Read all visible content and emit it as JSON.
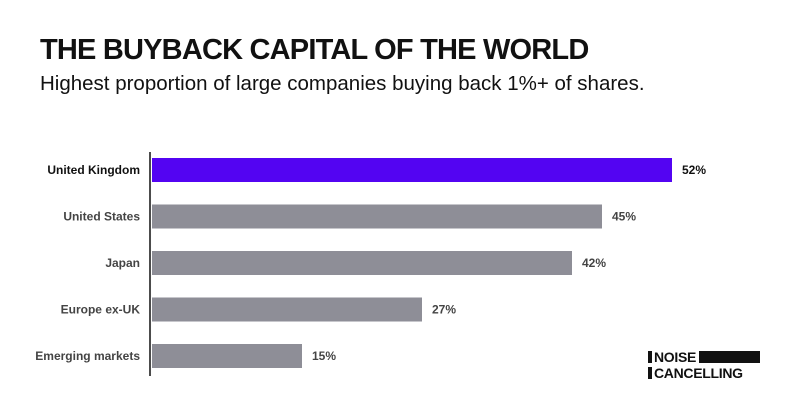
{
  "chart_data": {
    "type": "bar",
    "orientation": "horizontal",
    "title": "THE BUYBACK CAPITAL OF THE WORLD",
    "subtitle": "Highest proportion of large companies buying back 1%+ of shares.",
    "categories": [
      "United Kingdom",
      "United States",
      "Japan",
      "Europe ex-UK",
      "Emerging markets"
    ],
    "values": [
      52,
      45,
      42,
      27,
      15
    ],
    "value_labels": [
      "52%",
      "45%",
      "42%",
      "27%",
      "15%"
    ],
    "highlight": "United Kingdom",
    "xlim": [
      0,
      60
    ],
    "grid": false,
    "legend": "none",
    "colors": {
      "highlight": "#5304f2",
      "default": "#8e8e97",
      "axis": "#111111",
      "label_highlight": "#111111",
      "label_default": "#444444"
    }
  },
  "brand": {
    "line1": "NOISE",
    "line2": "CANCELLING"
  }
}
